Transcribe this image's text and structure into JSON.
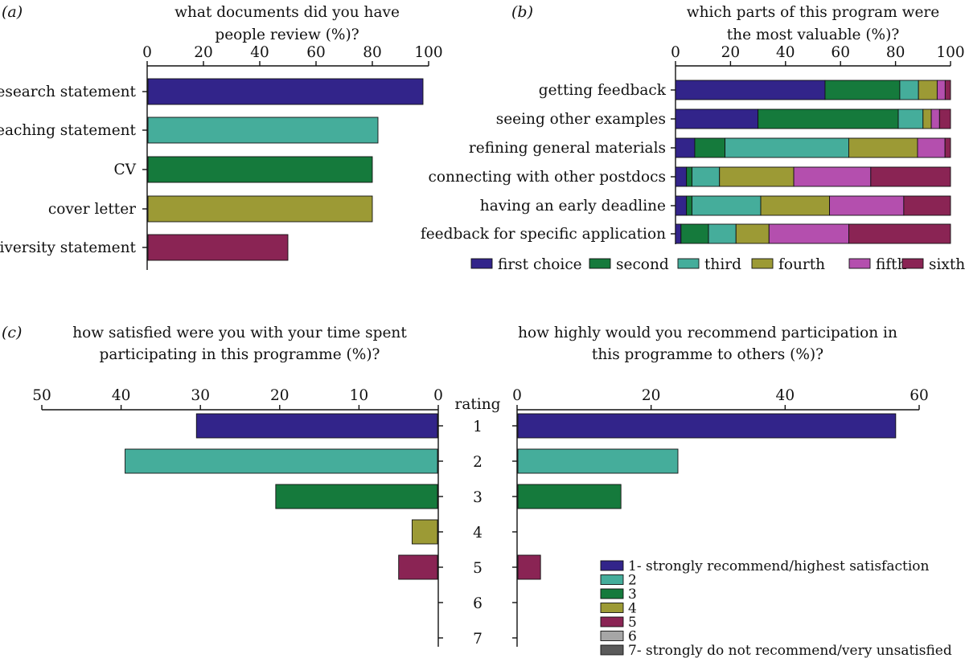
{
  "colors": {
    "c1": "#32248a",
    "c2": "#157a3c",
    "c3": "#45ad9b",
    "c4": "#9c9a35",
    "c5": "#b44fae",
    "c6": "#8a2454",
    "c_r5": "#8a2454",
    "c_r6": "#a6a6a6",
    "c_r7": "#5a5a5a"
  },
  "chart_data": [
    {
      "id": "a",
      "panel_label": "(a)",
      "type": "bar",
      "orientation": "horizontal",
      "title_lines": [
        "what documents did you have",
        "people review (%)?"
      ],
      "categories": [
        "research statement",
        "teaching statement",
        "CV",
        "cover letter",
        "diversity statement"
      ],
      "values": [
        98,
        82,
        80,
        80,
        50
      ],
      "bar_colors": [
        "#32248a",
        "#45ad9b",
        "#157a3c",
        "#9c9a35",
        "#8a2454"
      ],
      "xlim": [
        0,
        100
      ],
      "xticks": [
        "0",
        "20",
        "40",
        "60",
        "80",
        "100"
      ],
      "xtick_values": [
        0,
        20,
        40,
        60,
        80,
        100
      ],
      "axis_position": "top",
      "grid": false
    },
    {
      "id": "b",
      "panel_label": "(b)",
      "type": "bar",
      "orientation": "horizontal",
      "stacked": true,
      "title_lines": [
        "which parts of this program were",
        "the most valuable (%)?"
      ],
      "categories": [
        "getting feedback",
        "seeing other examples",
        "refining general materials",
        "connecting with other postdocs",
        "having an early deadline",
        "feedback for specific application"
      ],
      "series": [
        {
          "name": "first choice",
          "color": "#32248a",
          "values": [
            56,
            30,
            7,
            4,
            4,
            2
          ]
        },
        {
          "name": "second",
          "color": "#157a3c",
          "values": [
            28,
            51,
            11,
            2,
            2,
            10
          ]
        },
        {
          "name": "third",
          "color": "#45ad9b",
          "values": [
            7,
            9,
            45,
            10,
            25,
            10
          ]
        },
        {
          "name": "fourth",
          "color": "#9c9a35",
          "values": [
            7,
            3,
            25,
            27,
            25,
            12
          ]
        },
        {
          "name": "fifth",
          "color": "#b44fae",
          "values": [
            3,
            3,
            10,
            28,
            27,
            29
          ]
        },
        {
          "name": "sixth",
          "color": "#8a2454",
          "values": [
            2,
            4,
            2,
            29,
            17,
            37
          ]
        }
      ],
      "xlim": [
        0,
        100
      ],
      "xticks": [
        "0",
        "20",
        "40",
        "60",
        "80",
        "100"
      ],
      "xtick_values": [
        0,
        20,
        40,
        60,
        80,
        100
      ],
      "axis_position": "top",
      "legend_position": "bottom",
      "grid": false
    },
    {
      "id": "c-left",
      "panel_label": "(c)",
      "type": "bar",
      "orientation": "horizontal",
      "direction": "right-to-left",
      "title_lines": [
        "how satisfied were you with your time spent",
        "participating in this programme (%)?"
      ],
      "rating_label": "rating",
      "categories": [
        "1",
        "2",
        "3",
        "4",
        "5",
        "6",
        "7"
      ],
      "values": [
        30.5,
        39.5,
        20.5,
        3.3,
        5,
        0,
        0
      ],
      "bar_colors": [
        "#32248a",
        "#45ad9b",
        "#157a3c",
        "#9c9a35",
        "#8a2454",
        "#a6a6a6",
        "#5a5a5a"
      ],
      "xlim": [
        0,
        50
      ],
      "xticks": [
        "50",
        "40",
        "30",
        "20",
        "10",
        "0"
      ],
      "xtick_values": [
        50,
        40,
        30,
        20,
        10,
        0
      ],
      "axis_position": "top",
      "grid": false
    },
    {
      "id": "c-right",
      "type": "bar",
      "orientation": "horizontal",
      "title_lines": [
        "how highly would you recommend participation in",
        "this programme to others (%)?"
      ],
      "categories": [
        "1",
        "2",
        "3",
        "4",
        "5",
        "6",
        "7"
      ],
      "values": [
        56.5,
        24,
        15.5,
        0,
        3.5,
        0,
        0
      ],
      "bar_colors": [
        "#32248a",
        "#45ad9b",
        "#157a3c",
        "#9c9a35",
        "#8a2454",
        "#a6a6a6",
        "#5a5a5a"
      ],
      "xlim": [
        0,
        60
      ],
      "xticks": [
        "0",
        "20",
        "40",
        "60"
      ],
      "xtick_values": [
        0,
        20,
        40,
        60
      ],
      "axis_position": "top",
      "legend_position": "bottom-right",
      "legend": [
        {
          "label": "1- strongly recommend/highest satisfaction",
          "color": "#32248a"
        },
        {
          "label": "2",
          "color": "#45ad9b"
        },
        {
          "label": "3",
          "color": "#157a3c"
        },
        {
          "label": "4",
          "color": "#9c9a35"
        },
        {
          "label": "5",
          "color": "#8a2454"
        },
        {
          "label": "6",
          "color": "#a6a6a6"
        },
        {
          "label": "7- strongly do not recommend/very unsatisfied",
          "color": "#5a5a5a"
        }
      ],
      "grid": false
    }
  ]
}
